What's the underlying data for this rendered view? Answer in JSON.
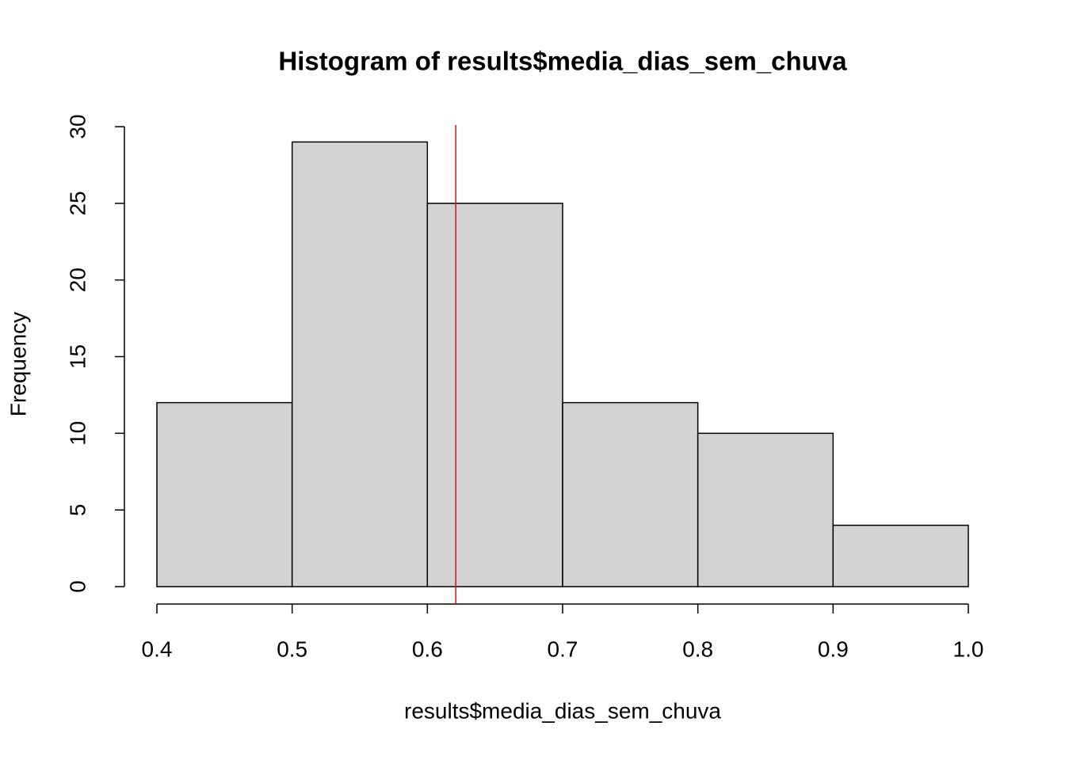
{
  "chart_data": {
    "type": "histogram",
    "title": "Histogram of results$media_dias_sem_chuva",
    "xlabel": "results$media_dias_sem_chuva",
    "ylabel": "Frequency",
    "bins": [
      0.4,
      0.5,
      0.6,
      0.7,
      0.8,
      0.9,
      1.0
    ],
    "counts": [
      12,
      29,
      25,
      12,
      10,
      4
    ],
    "color": "#d3d3d3",
    "xlim": [
      0.4,
      1.0
    ],
    "xticks": [
      0.4,
      0.5,
      0.6,
      0.7,
      0.8,
      0.9,
      {
        "value": 1.0,
        "label": "1.0"
      }
    ],
    "ylim": [
      0,
      30
    ],
    "yticks": [
      0,
      5,
      10,
      15,
      20,
      25,
      30
    ],
    "vline": {
      "x": 0.621,
      "color": "red"
    }
  }
}
